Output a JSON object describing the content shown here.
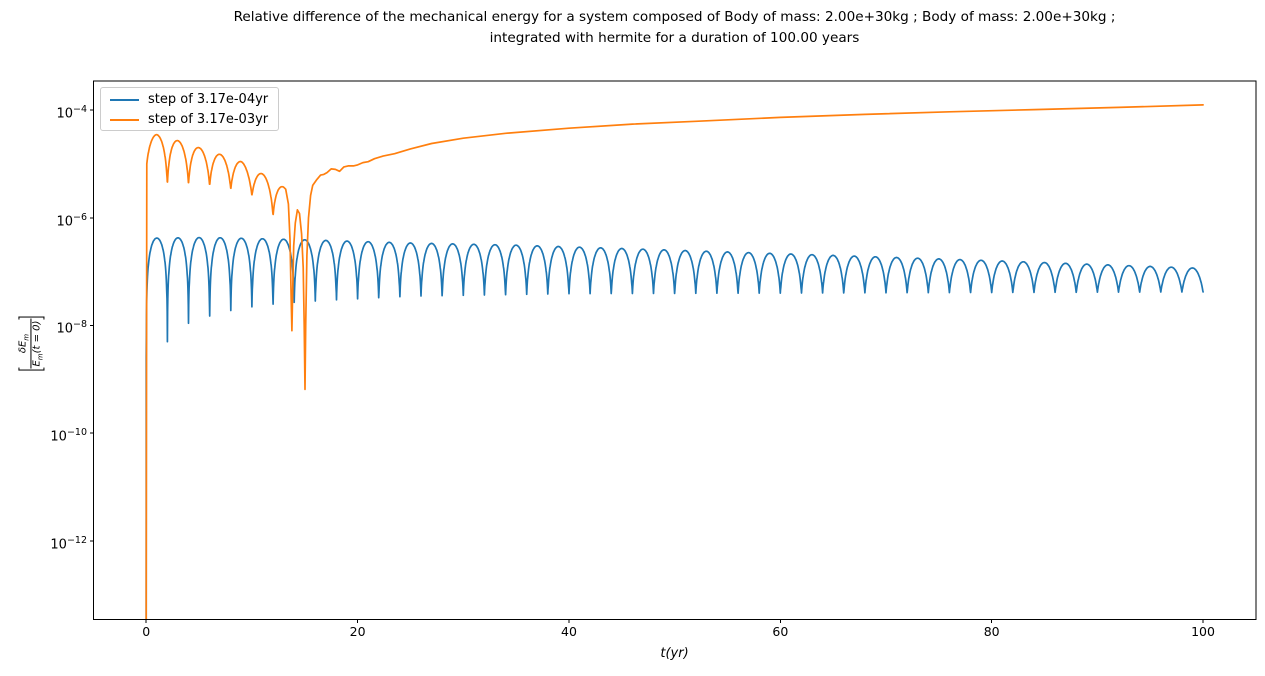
{
  "chart_data": {
    "type": "line",
    "title": "Relative difference of the mechanical energy for a system composed of Body of mass: 2.00e+30kg ; Body of mass: 2.00e+30kg ;\nintegrated with hermite for a duration of 100.00 years",
    "xlabel": "t(yr)",
    "ylabel": "|δE_m / E_m(t = 0)|",
    "ylabel_parts": {
      "numerator_main": "δE",
      "numerator_sub": "m",
      "denominator_main": "E",
      "denominator_sub": "m",
      "denominator_suffix": "(t = 0)"
    },
    "y_scale": "log",
    "grid": false,
    "xlim": [
      -5,
      105
    ],
    "ylim_log10": [
      -13.46,
      -3.46
    ],
    "x_ticks": [
      {
        "t": 0,
        "label": "0"
      },
      {
        "t": 20,
        "label": "20"
      },
      {
        "t": 40,
        "label": "40"
      },
      {
        "t": 60,
        "label": "60"
      },
      {
        "t": 80,
        "label": "80"
      },
      {
        "t": 100,
        "label": "100"
      }
    ],
    "y_ticks": [
      {
        "exp": -4,
        "label_base": "10",
        "label_exp": "−4"
      },
      {
        "exp": -6,
        "label_base": "10",
        "label_exp": "−6"
      },
      {
        "exp": -8,
        "label_base": "10",
        "label_exp": "−8"
      },
      {
        "exp": -10,
        "label_base": "10",
        "label_exp": "−10"
      },
      {
        "exp": -12,
        "label_base": "10",
        "label_exp": "−12"
      }
    ],
    "legend": {
      "position": "upper left",
      "entries": [
        {
          "label": "step of 3.17e-04yr",
          "color": "#1f77b4"
        },
        {
          "label": "step of 3.17e-03yr",
          "color": "#ff7f0e"
        }
      ]
    },
    "series": [
      {
        "name": "step of 3.17e-04yr",
        "color": "#1f77b4",
        "model": {
          "kind": "rectified-oscillation",
          "period_yr": 2.0,
          "t_range": [
            0,
            100
          ],
          "sample_step": 0.02,
          "start_point": [
            0,
            3.5e-14
          ],
          "peak_envelope": [
            [
              1,
              4.2e-07
            ],
            [
              6,
              4.3e-07
            ],
            [
              15,
              3.9e-07
            ],
            [
              25,
              3.4e-07
            ],
            [
              35,
              3.1e-07
            ],
            [
              50,
              2.5e-07
            ],
            [
              65,
              2e-07
            ],
            [
              80,
              1.6e-07
            ],
            [
              100,
              1.15e-07
            ]
          ],
          "min_envelope": [
            [
              0,
              2.5e-09
            ],
            [
              2,
              5e-09
            ],
            [
              4,
              1.1e-08
            ],
            [
              6,
              1.5e-08
            ],
            [
              8,
              1.9e-08
            ],
            [
              11,
              2.4e-08
            ],
            [
              14,
              2.7e-08
            ],
            [
              18,
              3e-08
            ],
            [
              25,
              3.5e-08
            ],
            [
              40,
              3.9e-08
            ],
            [
              60,
              4e-08
            ],
            [
              80,
              4.1e-08
            ],
            [
              100,
              4.2e-08
            ]
          ]
        }
      },
      {
        "name": "step of 3.17e-03yr",
        "color": "#ff7f0e",
        "model": {
          "kind": "composite",
          "segments": [
            {
              "kind": "points",
              "points": [
                [
                  0,
                  3.5e-14
                ]
              ]
            },
            {
              "kind": "rectified-oscillation",
              "period_yr": 2.0,
              "t_range": [
                0.05,
                13.0
              ],
              "sample_step": 0.02,
              "peak_envelope": [
                [
                  1,
                  3.5e-05
                ],
                [
                  3,
                  2.7e-05
                ],
                [
                  5,
                  2e-05
                ],
                [
                  7,
                  1.5e-05
                ],
                [
                  9,
                  1.1e-05
                ],
                [
                  11,
                  6.5e-06
                ],
                [
                  13,
                  3.7e-06
                ]
              ],
              "min_envelope": [
                [
                  0,
                  8e-06
                ],
                [
                  2,
                  4.2e-06
                ],
                [
                  4,
                  4.2e-06
                ],
                [
                  6,
                  4e-06
                ],
                [
                  8,
                  3.4e-06
                ],
                [
                  10,
                  2.6e-06
                ],
                [
                  12,
                  1.1e-06
                ],
                [
                  13,
                  9e-07
                ]
              ]
            },
            {
              "kind": "points",
              "points": [
                [
                  13.2,
                  3.4e-06
                ],
                [
                  13.45,
                  1.8e-06
                ],
                [
                  13.6,
                  4e-07
                ],
                [
                  13.72,
                  3e-08
                ],
                [
                  13.78,
                  8e-09
                ],
                [
                  13.84,
                  3e-08
                ],
                [
                  13.95,
                  3e-07
                ],
                [
                  14.1,
                  8e-07
                ],
                [
                  14.3,
                  1.4e-06
                ],
                [
                  14.5,
                  1.2e-06
                ],
                [
                  14.7,
                  5e-07
                ],
                [
                  14.85,
                  1.2e-07
                ],
                [
                  14.95,
                  1e-08
                ],
                [
                  15.02,
                  6.5e-10
                ],
                [
                  15.09,
                  1e-08
                ],
                [
                  15.2,
                  2e-07
                ],
                [
                  15.35,
                  1e-06
                ],
                [
                  15.55,
                  2.6e-06
                ],
                [
                  15.75,
                  4e-06
                ],
                [
                  16.1,
                  5e-06
                ],
                [
                  16.5,
                  6.2e-06
                ],
                [
                  16.8,
                  6.4e-06
                ],
                [
                  17.1,
                  6.9e-06
                ],
                [
                  17.5,
                  8.1e-06
                ],
                [
                  17.9,
                  7.9e-06
                ],
                [
                  18.3,
                  7.3e-06
                ],
                [
                  18.7,
                  8.8e-06
                ],
                [
                  19.1,
                  9.2e-06
                ],
                [
                  19.6,
                  9.2e-06
                ],
                [
                  20.0,
                  9.6e-06
                ],
                [
                  20.5,
                  1.06e-05
                ],
                [
                  21.0,
                  1.1e-05
                ],
                [
                  21.6,
                  1.25e-05
                ],
                [
                  22.4,
                  1.4e-05
                ],
                [
                  23.5,
                  1.55e-05
                ],
                [
                  25,
                  1.9e-05
                ],
                [
                  27,
                  2.4e-05
                ],
                [
                  30,
                  3e-05
                ],
                [
                  34,
                  3.7e-05
                ],
                [
                  40,
                  4.6e-05
                ],
                [
                  46,
                  5.5e-05
                ],
                [
                  52,
                  6.2e-05
                ],
                [
                  60,
                  7.3e-05
                ],
                [
                  68,
                  8.3e-05
                ],
                [
                  76,
                  9.3e-05
                ],
                [
                  84,
                  0.000102
                ],
                [
                  92,
                  0.000112
                ],
                [
                  100,
                  0.000125
                ]
              ]
            }
          ]
        }
      }
    ]
  }
}
